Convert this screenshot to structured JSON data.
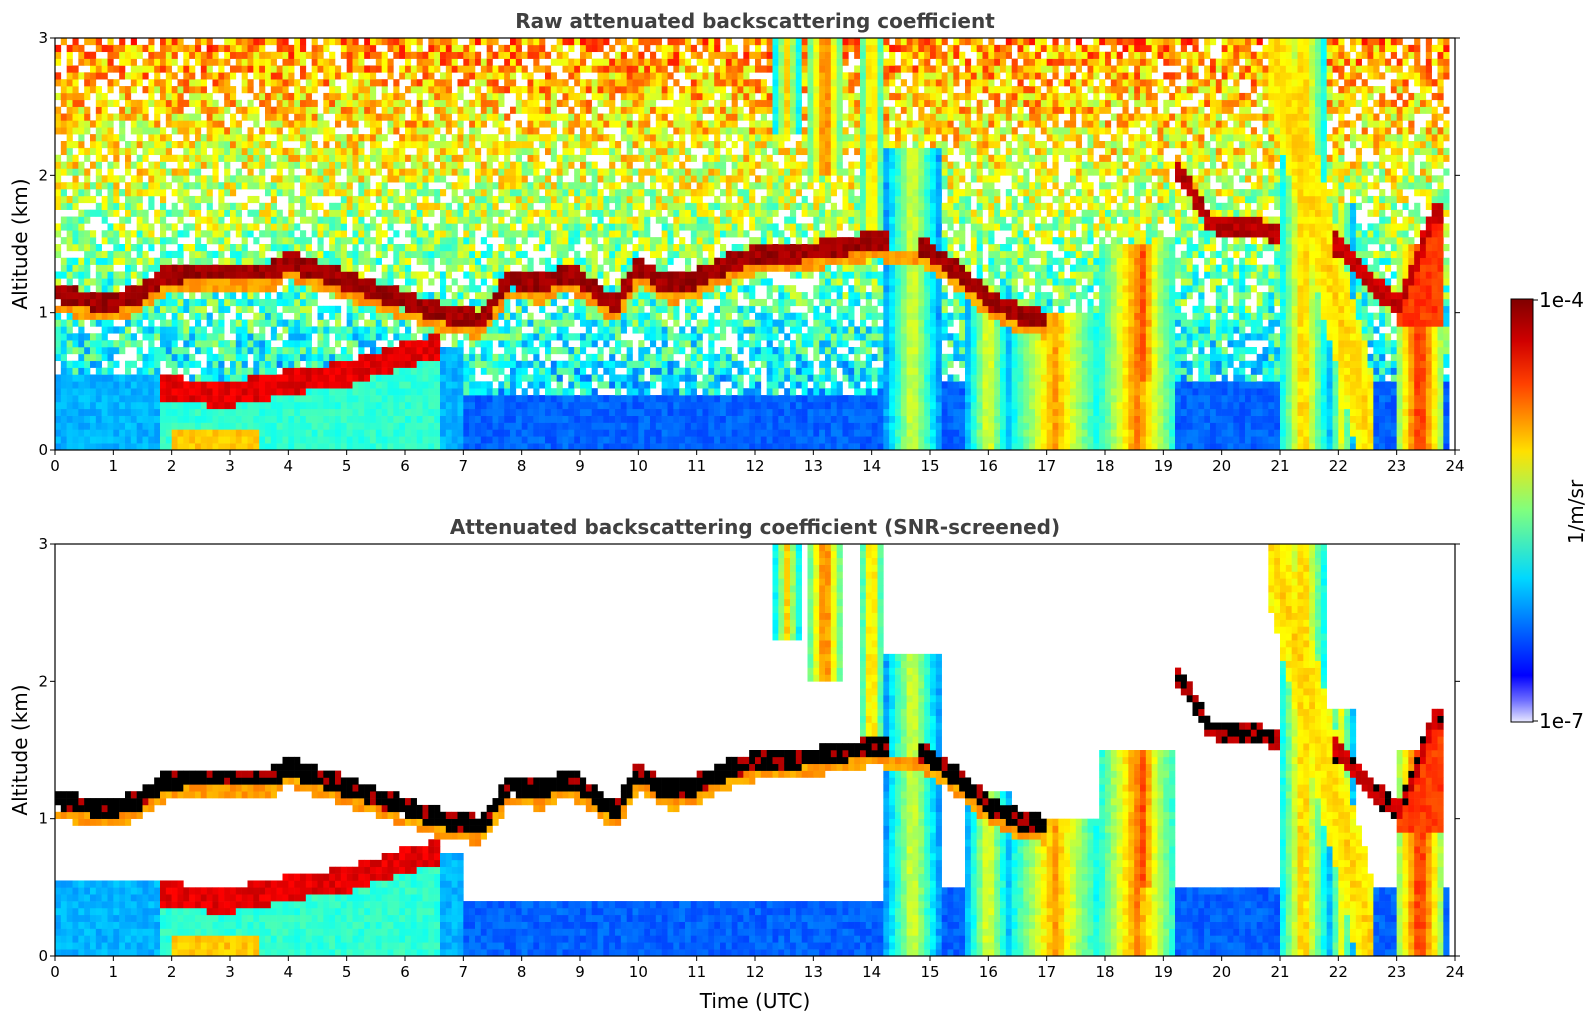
{
  "chart_data": [
    {
      "type": "heatmap",
      "title": "Raw attenuated backscattering coefficient",
      "xlabel": "",
      "ylabel": "Altitude (km)",
      "xlim": [
        0,
        24
      ],
      "ylim": [
        0,
        3
      ],
      "x_ticks": [
        "0",
        "1",
        "2",
        "3",
        "4",
        "5",
        "6",
        "7",
        "8",
        "9",
        "10",
        "11",
        "12",
        "13",
        "14",
        "15",
        "16",
        "17",
        "18",
        "19",
        "20",
        "21",
        "22",
        "23",
        "24"
      ],
      "y_ticks": [
        "0",
        "1",
        "2",
        "3"
      ],
      "screened": false
    },
    {
      "type": "heatmap",
      "title": "Attenuated backscattering coefficient (SNR-screened)",
      "xlabel": "Time (UTC)",
      "ylabel": "Altitude (km)",
      "xlim": [
        0,
        24
      ],
      "ylim": [
        0,
        3
      ],
      "x_ticks": [
        "0",
        "1",
        "2",
        "3",
        "4",
        "5",
        "6",
        "7",
        "8",
        "9",
        "10",
        "11",
        "12",
        "13",
        "14",
        "15",
        "16",
        "17",
        "18",
        "19",
        "20",
        "21",
        "22",
        "23",
        "24"
      ],
      "y_ticks": [
        "0",
        "1",
        "2",
        "3"
      ],
      "screened": true
    }
  ],
  "colorbar": {
    "label": "1/m/sr",
    "max_label": "1e-4",
    "min_label": "1e-7",
    "scale": "log",
    "colormap": "jet"
  },
  "layers": {
    "cloud_base": [
      [
        0,
        1.15
      ],
      [
        0.5,
        1.1
      ],
      [
        1,
        1.08
      ],
      [
        1.5,
        1.15
      ],
      [
        1.8,
        1.25
      ],
      [
        2.2,
        1.3
      ],
      [
        3.7,
        1.3
      ],
      [
        4,
        1.38
      ],
      [
        6.6,
        1.0
      ],
      [
        7.3,
        0.95
      ],
      [
        7.8,
        1.25
      ],
      [
        8.3,
        1.2
      ],
      [
        8.8,
        1.3
      ],
      [
        9.3,
        1.15
      ],
      [
        9.6,
        1.05
      ],
      [
        10,
        1.35
      ],
      [
        10.5,
        1.2
      ],
      [
        11,
        1.25
      ],
      [
        11.5,
        1.35
      ],
      [
        12,
        1.42
      ],
      [
        13,
        1.45
      ],
      [
        14,
        1.52
      ],
      [
        14.8,
        1.5
      ],
      [
        15.5,
        1.3
      ],
      [
        16,
        1.1
      ],
      [
        16.5,
        1.0
      ],
      [
        17,
        0.95
      ]
    ],
    "upper_layer": [
      [
        19.3,
        2.02
      ],
      [
        19.8,
        1.65
      ],
      [
        20.5,
        1.62
      ],
      [
        21,
        1.58
      ]
    ],
    "late_layer": [
      [
        22,
        1.5
      ],
      [
        22.5,
        1.25
      ],
      [
        23,
        1.05
      ],
      [
        23.3,
        1.3
      ],
      [
        23.6,
        1.7
      ],
      [
        23.8,
        1.72
      ]
    ],
    "aerosol_top": [
      [
        1.8,
        0.45
      ],
      [
        3,
        0.4
      ],
      [
        4,
        0.5
      ],
      [
        5,
        0.55
      ],
      [
        6,
        0.7
      ],
      [
        6.6,
        0.75
      ]
    ]
  }
}
